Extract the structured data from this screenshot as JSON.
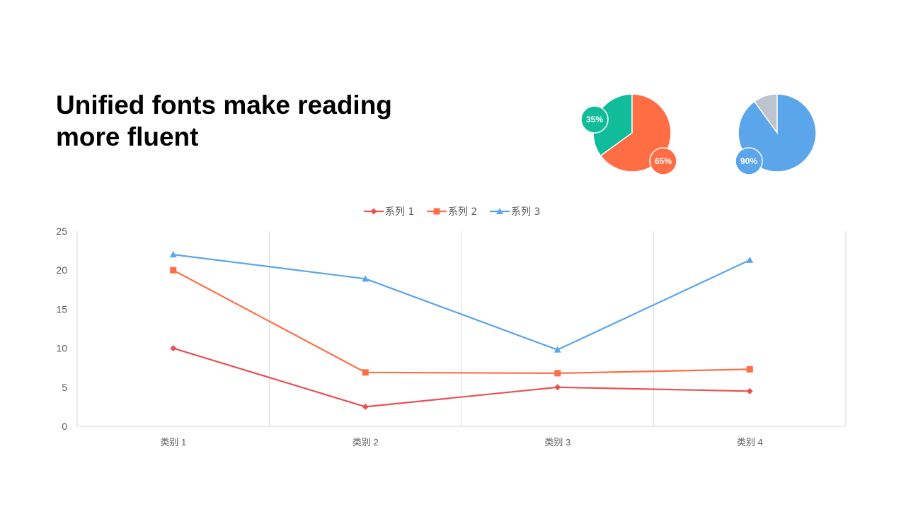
{
  "slide": {
    "title_lines": [
      "Unified fonts make reading",
      "more fluent"
    ]
  },
  "colors": {
    "teal": "#11BC9B",
    "orange": "#FF6D45",
    "blue": "#5BA5EB",
    "gray": "#BDC4CE",
    "red": "#EA5052",
    "grid": "#D9D9D9",
    "axis_text": "#595959"
  },
  "chart_data": [
    {
      "type": "pie",
      "values": [
        35,
        65
      ],
      "labels": [
        "35%",
        "65%"
      ],
      "colors": [
        "#11BC9B",
        "#FF6D45"
      ]
    },
    {
      "type": "pie",
      "values": [
        10,
        90
      ],
      "labels": [
        "",
        "90%"
      ],
      "colors": [
        "#BDC4CE",
        "#5BA5EB"
      ]
    },
    {
      "type": "line",
      "categories": [
        "类别 1",
        "类别 2",
        "类别 3",
        "类别 4"
      ],
      "series": [
        {
          "name": "系列 1",
          "values": [
            10,
            2.5,
            5,
            4.5
          ],
          "color": "#EA5052",
          "marker": "diamond"
        },
        {
          "name": "系列 2",
          "values": [
            20,
            6.9,
            6.8,
            7.3
          ],
          "color": "#FF6D45",
          "marker": "square"
        },
        {
          "name": "系列 3",
          "values": [
            22,
            18.9,
            9.8,
            21.3
          ],
          "color": "#5BA5EB",
          "marker": "triangle"
        }
      ],
      "ylim": [
        0,
        25
      ],
      "yticks": [
        0,
        5,
        10,
        15,
        20,
        25
      ],
      "grid": "vertical",
      "legend": "top-center"
    }
  ]
}
